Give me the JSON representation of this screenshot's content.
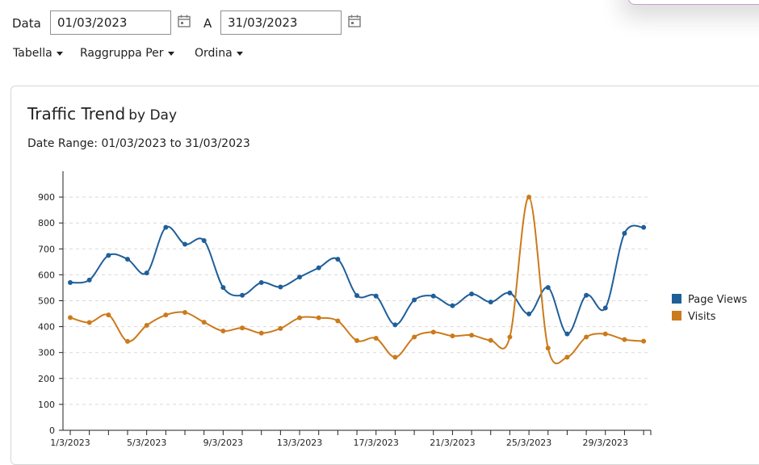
{
  "filters": {
    "date_label": "Data",
    "date_from": "01/03/2023",
    "to_label": "A",
    "date_to": "31/03/2023",
    "menus": [
      {
        "label": "Tabella"
      },
      {
        "label": "Raggruppa Per"
      },
      {
        "label": "Ordina"
      }
    ],
    "icons": [
      "calendar-icon",
      "calendar-icon",
      "caret-down-icon"
    ]
  },
  "chart_title": "Traffic Trend",
  "chart_subtitle": "by Day",
  "date_range_text": "Date Range: 01/03/2023 to 31/03/2023",
  "chart_data": {
    "type": "line",
    "title": "Traffic Trend by Day",
    "x": [
      "1/3/2023",
      "2/3/2023",
      "3/3/2023",
      "4/3/2023",
      "5/3/2023",
      "6/3/2023",
      "7/3/2023",
      "8/3/2023",
      "9/3/2023",
      "10/3/2023",
      "11/3/2023",
      "12/3/2023",
      "13/3/2023",
      "14/3/2023",
      "15/3/2023",
      "16/3/2023",
      "17/3/2023",
      "18/3/2023",
      "19/3/2023",
      "20/3/2023",
      "21/3/2023",
      "22/3/2023",
      "23/3/2023",
      "24/3/2023",
      "25/3/2023",
      "26/3/2023",
      "27/3/2023",
      "28/3/2023",
      "29/3/2023",
      "30/3/2023",
      "31/3/2023"
    ],
    "x_tick_labels": [
      "1/3/2023",
      "5/3/2023",
      "9/3/2023",
      "13/3/2023",
      "17/3/2023",
      "21/3/2023",
      "25/3/2023",
      "29/3/2023"
    ],
    "series": [
      {
        "name": "Page Views",
        "color": "#1f5f99",
        "values": [
          570,
          580,
          675,
          660,
          607,
          783,
          718,
          732,
          551,
          521,
          570,
          553,
          591,
          627,
          660,
          520,
          518,
          407,
          503,
          518,
          481,
          526,
          495,
          530,
          449,
          551,
          372,
          521,
          472,
          760,
          783
        ]
      },
      {
        "name": "Visits",
        "color": "#cc7a1b",
        "values": [
          435,
          416,
          445,
          343,
          405,
          445,
          455,
          417,
          383,
          395,
          375,
          393,
          434,
          434,
          422,
          346,
          355,
          282,
          360,
          379,
          364,
          367,
          347,
          360,
          900,
          317,
          282,
          360,
          372,
          350,
          344
        ]
      }
    ],
    "y_ticks": [
      0,
      100,
      200,
      300,
      400,
      500,
      600,
      700,
      800,
      900
    ],
    "ylim": [
      0,
      1000
    ],
    "grid": true,
    "legend_position": "right"
  }
}
